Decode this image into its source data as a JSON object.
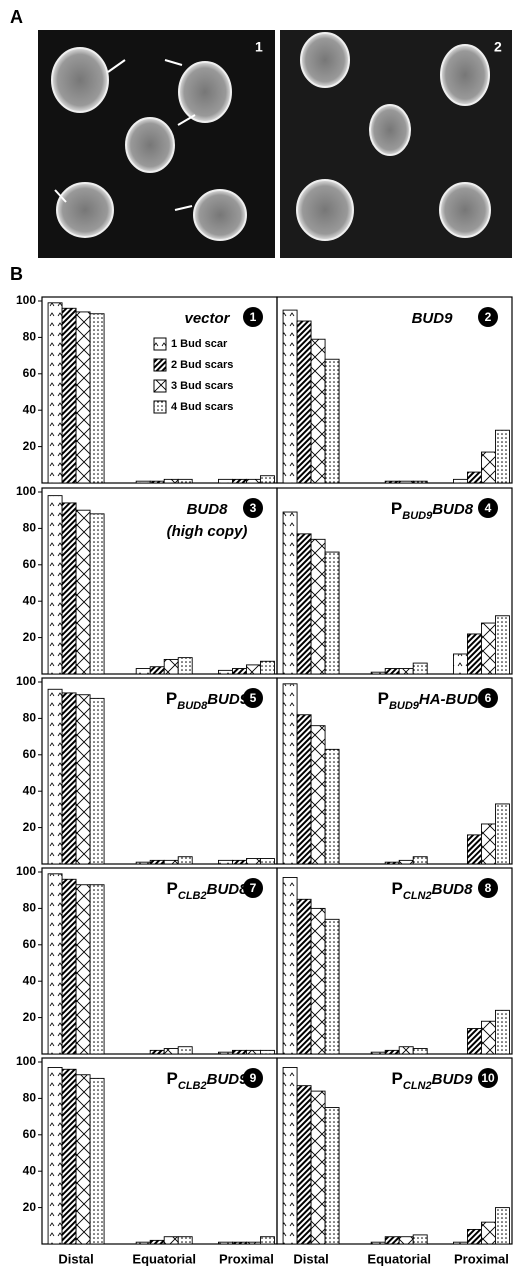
{
  "figure": {
    "panel_a": {
      "label": "A",
      "images": [
        {
          "label": "1"
        },
        {
          "label": "2"
        }
      ]
    },
    "panel_b_label": "B"
  },
  "chart_data": [
    {
      "type": "bar",
      "number": 1,
      "title": "vector",
      "ylim": [
        0,
        100
      ],
      "yticks": [
        20,
        40,
        60,
        80,
        100
      ],
      "series": [
        {
          "name": "1 Bud scar",
          "values": [
            99,
            1,
            2
          ]
        },
        {
          "name": "2 Bud scars",
          "values": [
            96,
            1,
            2
          ]
        },
        {
          "name": "3 Bud scars",
          "values": [
            94,
            2,
            2
          ]
        },
        {
          "name": "4 Bud scars",
          "values": [
            93,
            2,
            4
          ]
        }
      ]
    },
    {
      "type": "bar",
      "number": 2,
      "title": "BUD9",
      "ylim": [
        0,
        100
      ],
      "series": [
        {
          "values": [
            95,
            0,
            2
          ]
        },
        {
          "values": [
            89,
            1,
            6
          ]
        },
        {
          "values": [
            79,
            1,
            17
          ]
        },
        {
          "values": [
            68,
            1,
            29
          ]
        }
      ]
    },
    {
      "type": "bar",
      "number": 3,
      "title": "BUD8",
      "subtitle": "(high copy)",
      "ylim": [
        0,
        100
      ],
      "yticks": [
        20,
        40,
        60,
        80,
        100
      ],
      "series": [
        {
          "values": [
            98,
            3,
            2
          ]
        },
        {
          "values": [
            94,
            4,
            3
          ]
        },
        {
          "values": [
            90,
            8,
            5
          ]
        },
        {
          "values": [
            88,
            9,
            7
          ]
        }
      ]
    },
    {
      "type": "bar",
      "number": 4,
      "title_prefix": "P",
      "title_subscript": "BUD9",
      "title": "BUD8",
      "ylim": [
        0,
        100
      ],
      "series": [
        {
          "values": [
            89,
            1,
            11
          ]
        },
        {
          "values": [
            77,
            3,
            22
          ]
        },
        {
          "values": [
            74,
            3,
            28
          ]
        },
        {
          "values": [
            67,
            6,
            32
          ]
        }
      ]
    },
    {
      "type": "bar",
      "number": 5,
      "title_prefix": "P",
      "title_subscript": "BUD8",
      "title": "BUD9",
      "ylim": [
        0,
        100
      ],
      "yticks": [
        20,
        40,
        60,
        80,
        100
      ],
      "series": [
        {
          "values": [
            96,
            1,
            2
          ]
        },
        {
          "values": [
            94,
            2,
            2
          ]
        },
        {
          "values": [
            93,
            2,
            3
          ]
        },
        {
          "values": [
            91,
            4,
            3
          ]
        }
      ]
    },
    {
      "type": "bar",
      "number": 6,
      "title_prefix": "P",
      "title_subscript": "BUD9",
      "title": "HA-BUD8",
      "ylim": [
        0,
        100
      ],
      "series": [
        {
          "values": [
            99,
            0,
            0
          ]
        },
        {
          "values": [
            82,
            1,
            16
          ]
        },
        {
          "values": [
            76,
            2,
            22
          ]
        },
        {
          "values": [
            63,
            4,
            33
          ]
        }
      ]
    },
    {
      "type": "bar",
      "number": 7,
      "title_prefix": "P",
      "title_subscript": "CLB2",
      "title": "BUD8",
      "ylim": [
        0,
        100
      ],
      "yticks": [
        20,
        40,
        60,
        80,
        100
      ],
      "series": [
        {
          "values": [
            99,
            0,
            1
          ]
        },
        {
          "values": [
            96,
            2,
            2
          ]
        },
        {
          "values": [
            93,
            3,
            2
          ]
        },
        {
          "values": [
            93,
            4,
            2
          ]
        }
      ]
    },
    {
      "type": "bar",
      "number": 8,
      "title_prefix": "P",
      "title_subscript": "CLN2",
      "title": "BUD8",
      "ylim": [
        0,
        100
      ],
      "series": [
        {
          "values": [
            97,
            1,
            0
          ]
        },
        {
          "values": [
            85,
            2,
            14
          ]
        },
        {
          "values": [
            80,
            4,
            18
          ]
        },
        {
          "values": [
            74,
            3,
            24
          ]
        }
      ]
    },
    {
      "type": "bar",
      "number": 9,
      "title_prefix": "P",
      "title_subscript": "CLB2",
      "title": "BUD9",
      "ylim": [
        0,
        100
      ],
      "yticks": [
        20,
        40,
        60,
        80,
        100
      ],
      "categories": [
        "Distal",
        "Equatorial",
        "Proximal"
      ],
      "series": [
        {
          "values": [
            97,
            1,
            1
          ]
        },
        {
          "values": [
            96,
            2,
            1
          ]
        },
        {
          "values": [
            93,
            4,
            1
          ]
        },
        {
          "values": [
            91,
            4,
            4
          ]
        }
      ]
    },
    {
      "type": "bar",
      "number": 10,
      "title_prefix": "P",
      "title_subscript": "CLN2",
      "title": "BUD9",
      "ylim": [
        0,
        100
      ],
      "categories": [
        "Distal",
        "Equatorial",
        "Proximal"
      ],
      "series": [
        {
          "values": [
            97,
            1,
            1
          ]
        },
        {
          "values": [
            87,
            4,
            8
          ]
        },
        {
          "values": [
            84,
            4,
            12
          ]
        },
        {
          "values": [
            75,
            5,
            20
          ]
        }
      ]
    }
  ]
}
